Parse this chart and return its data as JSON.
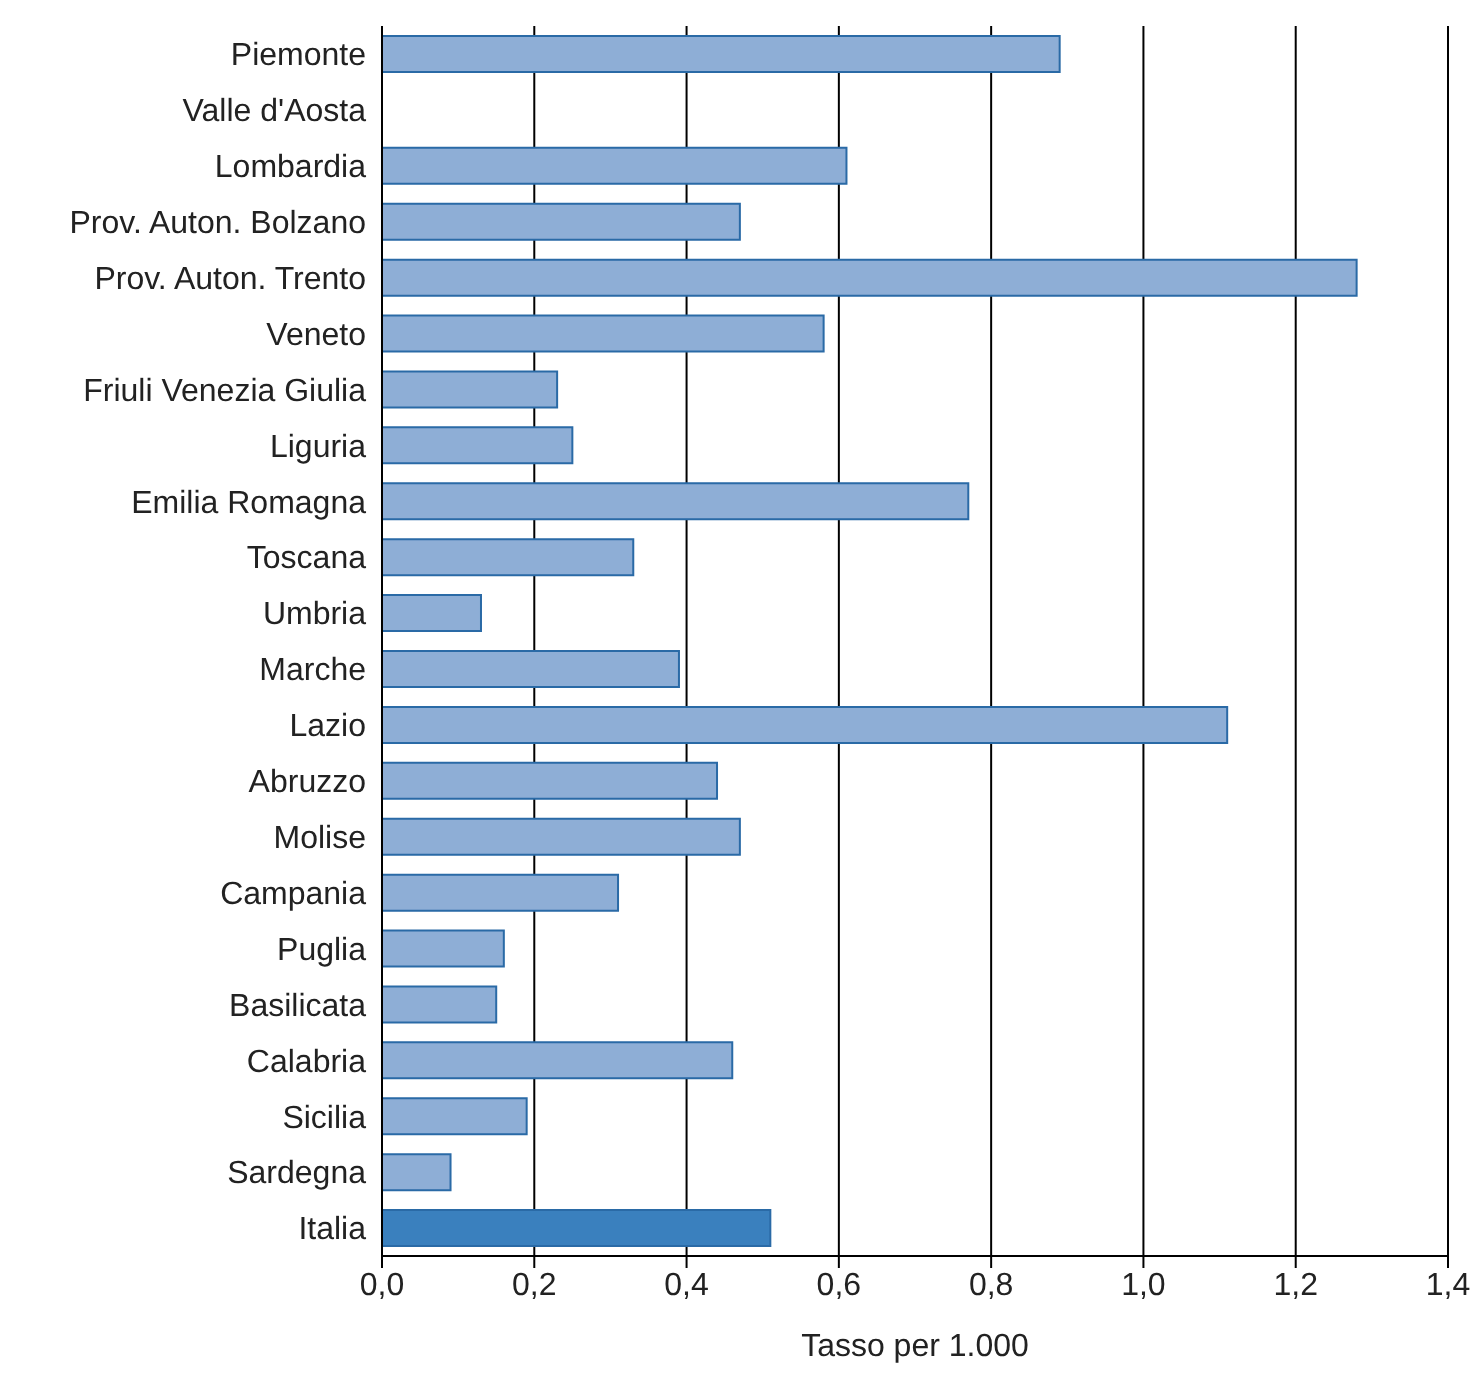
{
  "chart_data": {
    "type": "bar",
    "orientation": "horizontal",
    "xlabel": "Tasso per 1.000",
    "categories": [
      "Piemonte",
      "Valle d'Aosta",
      "Lombardia",
      "Prov. Auton. Bolzano",
      "Prov. Auton. Trento",
      "Veneto",
      "Friuli Venezia Giulia",
      "Liguria",
      "Emilia Romagna",
      "Toscana",
      "Umbria",
      "Marche",
      "Lazio",
      "Abruzzo",
      "Molise",
      "Campania",
      "Puglia",
      "Basilicata",
      "Calabria",
      "Sicilia",
      "Sardegna",
      "Italia"
    ],
    "values": [
      0.89,
      0,
      0.61,
      0.47,
      1.28,
      0.58,
      0.23,
      0.25,
      0.77,
      0.33,
      0.13,
      0.39,
      1.11,
      0.44,
      0.47,
      0.31,
      0.16,
      0.15,
      0.46,
      0.19,
      0.09,
      0.51
    ],
    "colors": [
      "#8eaed6",
      "#8eaed6",
      "#8eaed6",
      "#8eaed6",
      "#8eaed6",
      "#8eaed6",
      "#8eaed6",
      "#8eaed6",
      "#8eaed6",
      "#8eaed6",
      "#8eaed6",
      "#8eaed6",
      "#8eaed6",
      "#8eaed6",
      "#8eaed6",
      "#8eaed6",
      "#8eaed6",
      "#8eaed6",
      "#8eaed6",
      "#8eaed6",
      "#8eaed6",
      "#3a80be"
    ],
    "xlim": [
      0,
      1.4
    ],
    "xticks": [
      {
        "value": 0,
        "label": "0,0"
      },
      {
        "value": 0.2,
        "label": "0,2"
      },
      {
        "value": 0.4,
        "label": "0,4"
      },
      {
        "value": 0.6,
        "label": "0,6"
      },
      {
        "value": 0.8,
        "label": "0,8"
      },
      {
        "value": 1,
        "label": "1,0"
      },
      {
        "value": 1.2,
        "label": "1,2"
      },
      {
        "value": 1.4,
        "label": "1,4"
      }
    ],
    "grid": "x",
    "legend": false
  }
}
